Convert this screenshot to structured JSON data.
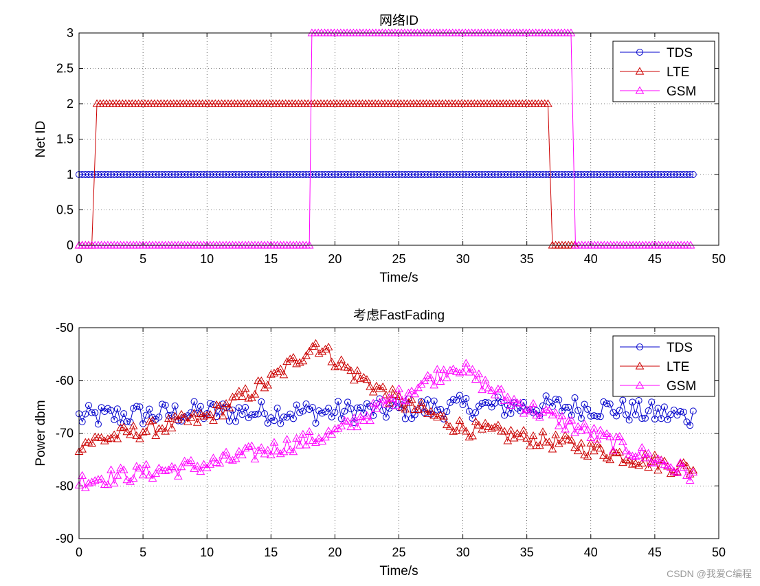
{
  "watermark": "CSDN @我爱C编程",
  "colors": {
    "TDS": "#0000cc",
    "LTE": "#cc0000",
    "GSM": "#ff00ff"
  },
  "chart_data": [
    {
      "type": "line",
      "title": "网络ID",
      "xlabel": "Time/s",
      "ylabel": "Net ID",
      "xlim": [
        0,
        50
      ],
      "ylim": [
        0,
        3
      ],
      "xticks": [
        "0",
        "5",
        "10",
        "15",
        "20",
        "25",
        "30",
        "35",
        "40",
        "45",
        "50"
      ],
      "yticks": [
        "0",
        "0.5",
        "1",
        "1.5",
        "2",
        "2.5",
        "3"
      ],
      "grid": true,
      "legend_position": "top-right",
      "x_range": [
        0,
        48
      ],
      "sample_step": 0.25,
      "series": [
        {
          "name": "TDS",
          "marker": "circle",
          "segments": [
            {
              "from": 0,
              "to": 48,
              "value": 1
            }
          ]
        },
        {
          "name": "LTE",
          "marker": "triangle",
          "segments": [
            {
              "from": 0,
              "to": 1.2,
              "value": 0
            },
            {
              "from": 1.4,
              "to": 36.8,
              "value": 2
            },
            {
              "from": 37.0,
              "to": 38.8,
              "value": 0
            }
          ]
        },
        {
          "name": "GSM",
          "marker": "triangle",
          "segments": [
            {
              "from": 0,
              "to": 18.0,
              "value": 0
            },
            {
              "from": 18.2,
              "to": 38.6,
              "value": 3
            },
            {
              "from": 38.8,
              "to": 48,
              "value": 0
            }
          ]
        }
      ]
    },
    {
      "type": "line",
      "title": "考虑FastFading",
      "xlabel": "Time/s",
      "ylabel": "Power dbm",
      "xlim": [
        0,
        50
      ],
      "ylim": [
        -90,
        -50
      ],
      "xticks": [
        "0",
        "5",
        "10",
        "15",
        "20",
        "25",
        "30",
        "35",
        "40",
        "45",
        "50"
      ],
      "yticks": [
        "-90",
        "-80",
        "-70",
        "-60",
        "-50"
      ],
      "grid": true,
      "legend_position": "top-right",
      "x_range": [
        0,
        48
      ],
      "sample_step": 0.25,
      "series": [
        {
          "name": "TDS",
          "marker": "circle",
          "trend": [
            [
              0,
              -67
            ],
            [
              10,
              -66
            ],
            [
              20,
              -66
            ],
            [
              30,
              -65
            ],
            [
              40,
              -65
            ],
            [
              48,
              -67
            ]
          ],
          "jitter": 2.2
        },
        {
          "name": "LTE",
          "marker": "triangle",
          "trend": [
            [
              0,
              -72
            ],
            [
              10,
              -67
            ],
            [
              15,
              -60
            ],
            [
              18.5,
              -53
            ],
            [
              21,
              -58
            ],
            [
              25,
              -64
            ],
            [
              30,
              -69
            ],
            [
              38,
              -72
            ],
            [
              48,
              -77
            ]
          ],
          "jitter": 1.6
        },
        {
          "name": "GSM",
          "marker": "triangle",
          "trend": [
            [
              0,
              -79
            ],
            [
              10,
              -76
            ],
            [
              20,
              -70
            ],
            [
              25,
              -63
            ],
            [
              29.5,
              -57
            ],
            [
              33,
              -63
            ],
            [
              40,
              -70
            ],
            [
              48,
              -78
            ]
          ],
          "jitter": 1.6
        }
      ]
    }
  ]
}
